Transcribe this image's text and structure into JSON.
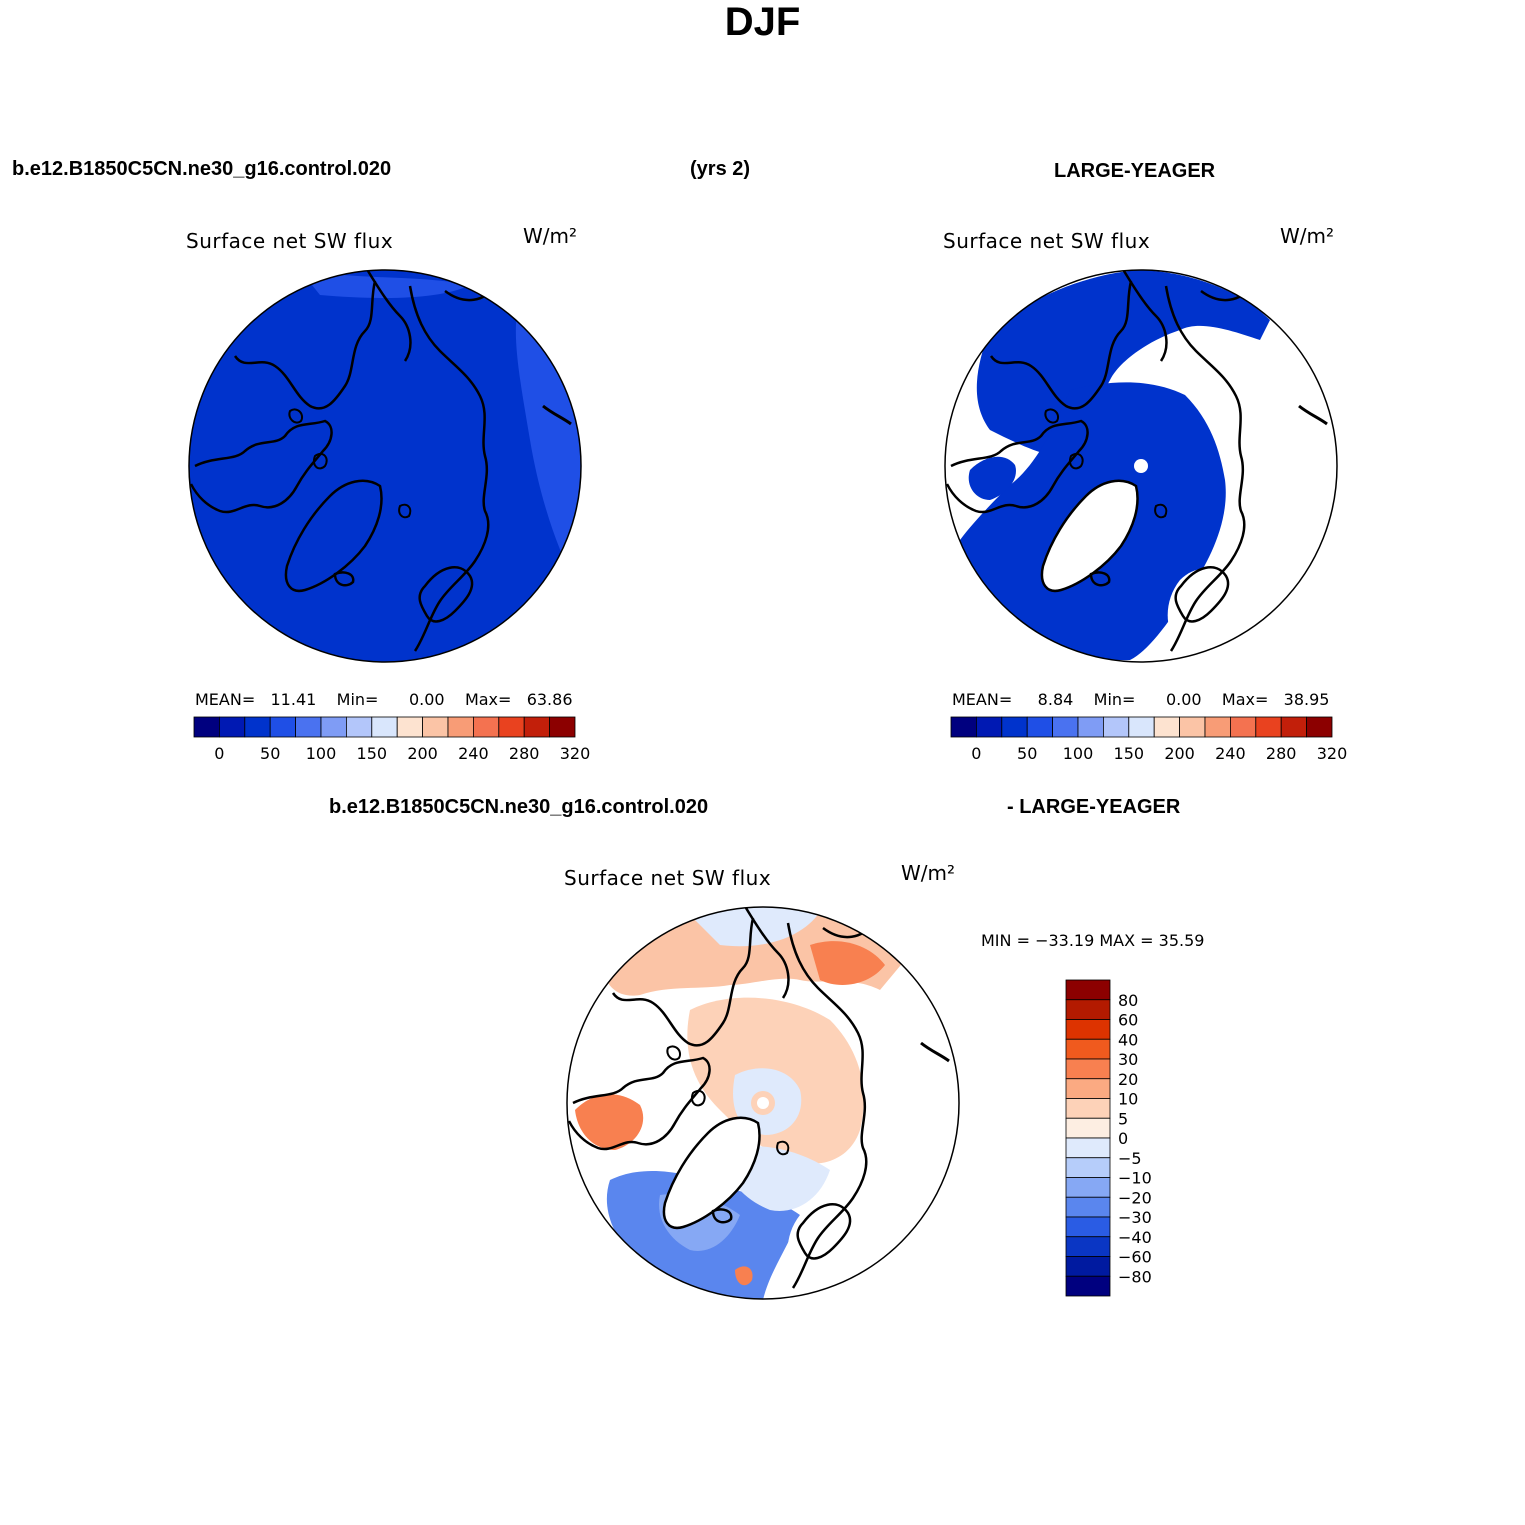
{
  "title": "DJF",
  "header": {
    "case_name": "b.e12.B1850C5CN.ne30_g16.control.020",
    "years": "(yrs 2)",
    "obs_name": "LARGE-YEAGER",
    "diff_case": "b.e12.B1850C5CN.ne30_g16.control.020",
    "diff_obs": "- LARGE-YEAGER"
  },
  "panels": [
    {
      "id": "model",
      "variable": "Surface net SW flux",
      "units": "W/m²",
      "stats": {
        "mean_label": "MEAN=",
        "mean": "11.41",
        "min_label": "Min=",
        "min": "0.00",
        "max_label": "Max=",
        "max": "63.86"
      }
    },
    {
      "id": "obs",
      "variable": "Surface net SW flux",
      "units": "W/m²",
      "stats": {
        "mean_label": "MEAN=",
        "mean": "8.84",
        "min_label": "Min=",
        "min": "0.00",
        "max_label": "Max=",
        "max": "38.95"
      }
    },
    {
      "id": "diff",
      "variable": "Surface net SW flux",
      "units": "W/m²",
      "stats_text": "MIN = −33.19 MAX =  35.59"
    }
  ],
  "abs_colorbar": {
    "colors": [
      "#00007f",
      "#0019b3",
      "#0033cc",
      "#1f4fe6",
      "#4a72f0",
      "#7f9cf5",
      "#b3c6fa",
      "#d9e6fc",
      "#fde3d0",
      "#fbc4a6",
      "#f89c76",
      "#f47250",
      "#e9421f",
      "#c21f0a",
      "#8c0000"
    ],
    "tick_labels": [
      "0",
      "50",
      "100",
      "150",
      "200",
      "240",
      "280",
      "320"
    ]
  },
  "diff_colorbar": {
    "colors": [
      "#8c0000",
      "#b31a00",
      "#dd3300",
      "#f05a1e",
      "#f88050",
      "#fbaa82",
      "#fdd2b8",
      "#fdeee2",
      "#dfeafc",
      "#b6cdfa",
      "#86a8f4",
      "#5a86ee",
      "#2a5ce4",
      "#0a36c4",
      "#001aa0",
      "#00007f"
    ],
    "tick_labels": [
      "80",
      "60",
      "40",
      "30",
      "20",
      "10",
      "5",
      "0",
      "−5",
      "−10",
      "−20",
      "−30",
      "−40",
      "−60",
      "−80"
    ]
  }
}
